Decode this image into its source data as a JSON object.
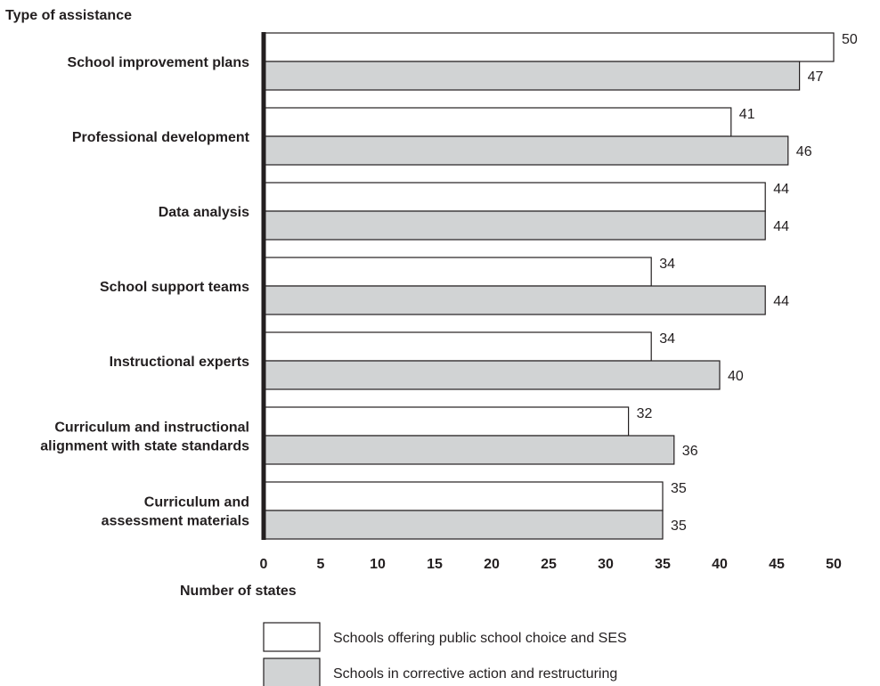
{
  "chart_data": {
    "type": "bar",
    "orientation": "horizontal",
    "ylabel": "Type of assistance",
    "xlabel": "Number of states",
    "xlim": [
      0,
      50
    ],
    "xticks": [
      "0",
      "5",
      "10",
      "15",
      "20",
      "25",
      "30",
      "35",
      "40",
      "45",
      "50"
    ],
    "grid": false,
    "legend_position": "bottom",
    "categories": [
      [
        "School improvement plans"
      ],
      [
        "Professional development"
      ],
      [
        "Data analysis"
      ],
      [
        "School support teams"
      ],
      [
        "Instructional experts"
      ],
      [
        "Curriculum and instructional",
        "alignment with state standards"
      ],
      [
        "Curriculum and",
        "assessment materials"
      ]
    ],
    "series": [
      {
        "name": "Schools offering public school choice and SES",
        "color": "#ffffff",
        "values": [
          50,
          41,
          44,
          34,
          34,
          32,
          35
        ]
      },
      {
        "name": "Schools in corrective action and restructuring",
        "color": "#d1d3d4",
        "values": [
          47,
          46,
          44,
          44,
          40,
          36,
          35
        ]
      }
    ]
  }
}
